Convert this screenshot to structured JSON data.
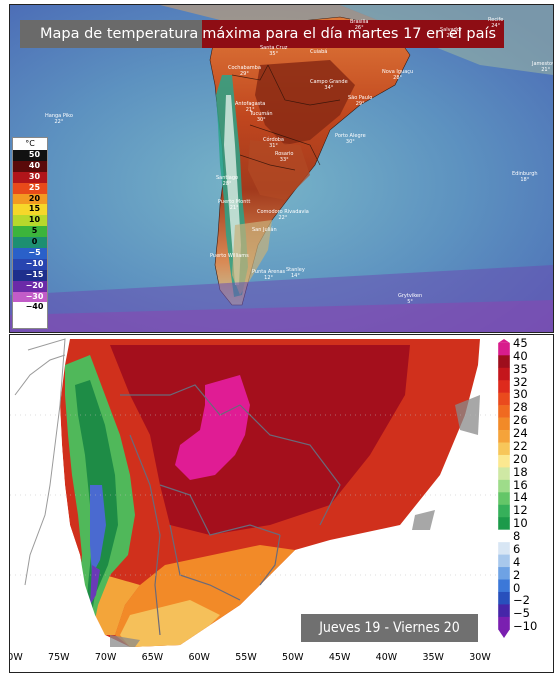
{
  "top_map": {
    "title_part1": "Mapa de temperatura",
    "title_part2": "máxima para el día martes 17 en el país",
    "legend_unit": "°C",
    "legend": [
      {
        "label": "50",
        "color": "#111111"
      },
      {
        "label": "40",
        "color": "#5a0a0a"
      },
      {
        "label": "30",
        "color": "#b0151a"
      },
      {
        "label": "25",
        "color": "#e84a1a"
      },
      {
        "label": "20",
        "color": "#f39a22"
      },
      {
        "label": "15",
        "color": "#f6d72a"
      },
      {
        "label": "10",
        "color": "#b8d82c"
      },
      {
        "label": "5",
        "color": "#3cb43c"
      },
      {
        "label": "0",
        "color": "#1d8f72"
      },
      {
        "label": "−5",
        "color": "#2a60c9"
      },
      {
        "label": "−10",
        "color": "#2845b0"
      },
      {
        "label": "−15",
        "color": "#1e2f8c"
      },
      {
        "label": "−20",
        "color": "#6b2aa8"
      },
      {
        "label": "−30",
        "color": "#c25cc8"
      },
      {
        "label": "−40",
        "color": "#ffffff"
      }
    ],
    "cities": [
      {
        "name": "Recife",
        "temp": "24°"
      },
      {
        "name": "Brasilia",
        "temp": "26°"
      },
      {
        "name": "Salvador",
        "temp": "29°"
      },
      {
        "name": "Cuiabá",
        "temp": ""
      },
      {
        "name": "Santa Cruz",
        "temp": "35°"
      },
      {
        "name": "Cochabamba",
        "temp": "29°"
      },
      {
        "name": "Nova Iguaçu",
        "temp": "28°"
      },
      {
        "name": "Campo Grande",
        "temp": "34°"
      },
      {
        "name": "São Paulo",
        "temp": "29°"
      },
      {
        "name": "Antofagasta",
        "temp": "21°"
      },
      {
        "name": "Hanga Piko",
        "temp": "22°"
      },
      {
        "name": "Tucumán",
        "temp": "30°"
      },
      {
        "name": "Porto Alegre",
        "temp": "30°"
      },
      {
        "name": "Córdoba",
        "temp": "31°"
      },
      {
        "name": "Santiago",
        "temp": "28°"
      },
      {
        "name": "Rosario",
        "temp": "33°"
      },
      {
        "name": "Puerto Montt",
        "temp": "21°"
      },
      {
        "name": "Comodoro Rivadavia",
        "temp": "22°"
      },
      {
        "name": "San Julián",
        "temp": ""
      },
      {
        "name": "Punta Arenas",
        "temp": "12°"
      },
      {
        "name": "Puerto Williams",
        "temp": ""
      },
      {
        "name": "Stanley",
        "temp": "14°"
      },
      {
        "name": "Edinburgh",
        "temp": "18°"
      },
      {
        "name": "Grytviken",
        "temp": "5°"
      },
      {
        "name": "Jamestown",
        "temp": "21°"
      }
    ]
  },
  "bottom_map": {
    "range_label": "Jueves 19 - Viernes 20",
    "scale_labels": [
      "45",
      "40",
      "35",
      "32",
      "30",
      "28",
      "26",
      "24",
      "22",
      "20",
      "18",
      "16",
      "14",
      "12",
      "10",
      "8",
      "6",
      "4",
      "2",
      "0",
      "−2",
      "−5",
      "−10"
    ],
    "scale_colors": [
      "#d81d8c",
      "#9e0e1c",
      "#c4161c",
      "#de2a1c",
      "#ea4a1d",
      "#f06a20",
      "#f28a28",
      "#f5a33a",
      "#f7c65a",
      "#fbe890",
      "#cfe8a4",
      "#9edc8a",
      "#64c668",
      "#36b05a",
      "#1c9a4a",
      "#ffffff",
      "#d8e6f4",
      "#a8c8ec",
      "#6ea2e4",
      "#3c78d8",
      "#2850bc",
      "#4626a8",
      "#7a1fb0"
    ],
    "lon_labels": [
      "80W",
      "75W",
      "70W",
      "65W",
      "60W",
      "55W",
      "50W",
      "45W",
      "40W",
      "35W",
      "30W"
    ]
  }
}
